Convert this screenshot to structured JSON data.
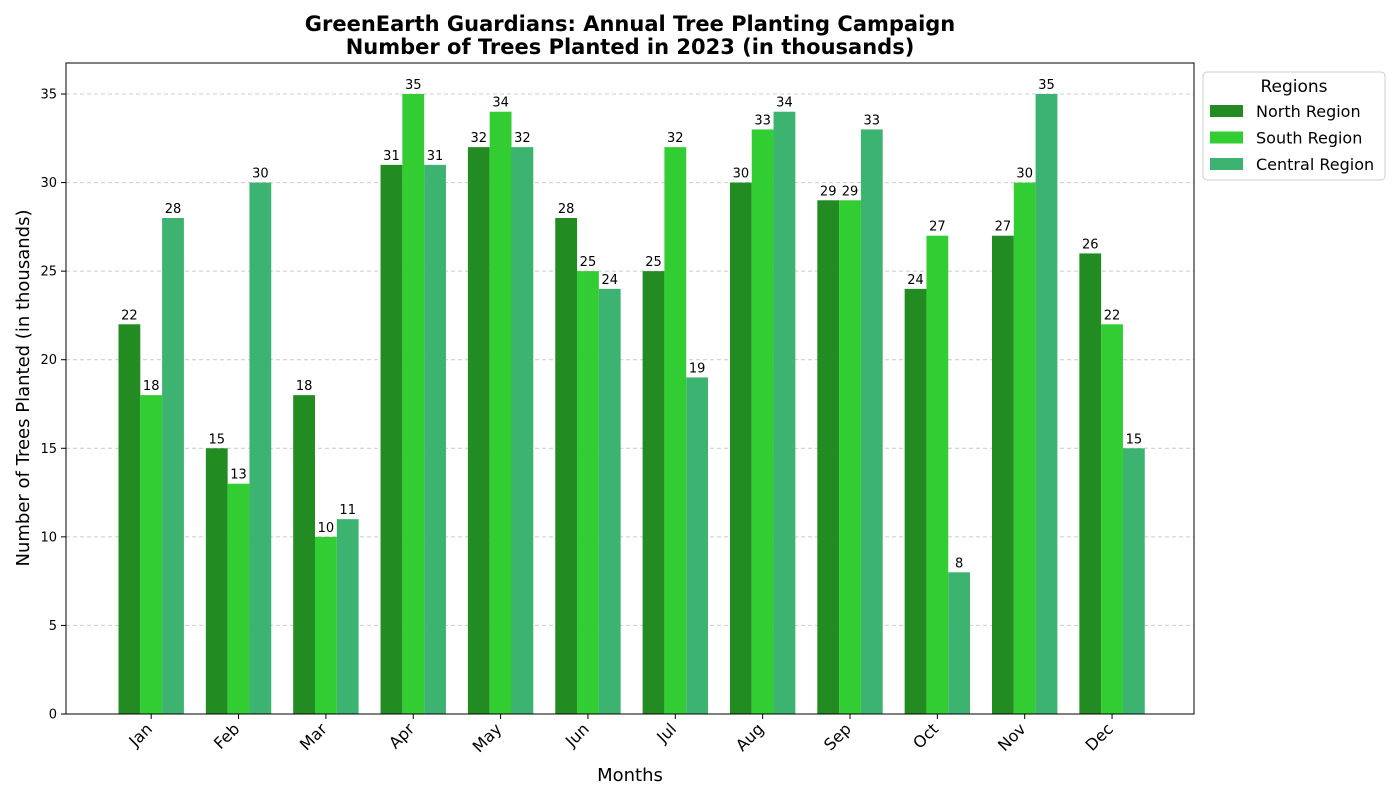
{
  "chart_data": {
    "type": "bar",
    "title_lines": [
      "GreenEarth Guardians: Annual Tree Planting Campaign",
      "Number of Trees Planted in 2023 (in thousands)"
    ],
    "xlabel": "Months",
    "ylabel": "Number of Trees Planted (in thousands)",
    "categories": [
      "Jan",
      "Feb",
      "Mar",
      "Apr",
      "May",
      "Jun",
      "Jul",
      "Aug",
      "Sep",
      "Oct",
      "Nov",
      "Dec"
    ],
    "series": [
      {
        "name": "North Region",
        "color": "#228b22",
        "values": [
          22,
          15,
          18,
          31,
          32,
          28,
          25,
          30,
          29,
          24,
          27,
          26
        ]
      },
      {
        "name": "South Region",
        "color": "#32cd32",
        "values": [
          18,
          13,
          10,
          35,
          34,
          25,
          32,
          33,
          29,
          27,
          30,
          22
        ]
      },
      {
        "name": "Central Region",
        "color": "#3cb371",
        "values": [
          28,
          30,
          11,
          31,
          32,
          24,
          19,
          34,
          33,
          8,
          35,
          15
        ]
      }
    ],
    "ylim": [
      0,
      36.75
    ],
    "yticks": [
      0,
      5,
      10,
      15,
      20,
      25,
      30,
      35
    ],
    "grid": "horizontal dashed",
    "legend": {
      "title": "Regions",
      "placement": "upper right, outside plot"
    }
  }
}
